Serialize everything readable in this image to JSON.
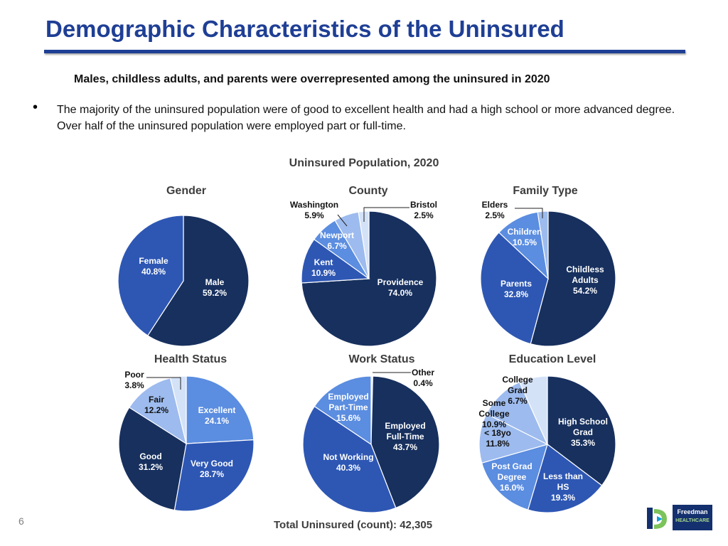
{
  "header": {
    "title": "Demographic Characteristics of the Uninsured",
    "subtitle": "Males, childless adults, and parents were overrepresented among the uninsured in 2020",
    "bullet": "The majority of the uninsured population were of good to excellent health and had a high school or more advanced degree. Over half of the uninsured population were employed part or full-time."
  },
  "section_title": "Uninsured Population, 2020",
  "footer": {
    "page_number": "6",
    "total": "Total Uninsured (count): 42,305",
    "logo_line1": "Freedman",
    "logo_line2": "HEALTHCARE"
  },
  "colors": {
    "title_blue": "#1f3f95",
    "navy": "#17305e",
    "medium_blue": "#2e57b4",
    "light_blue": "#5b8de0",
    "pale_blue": "#9dbbee",
    "palest_blue": "#d4e2f8"
  },
  "chart_data": [
    {
      "type": "pie",
      "title": "Gender",
      "slices": [
        {
          "label": "Male",
          "value": 59.2,
          "value_label": "59.2%",
          "color": "#17305e"
        },
        {
          "label": "Female",
          "value": 40.8,
          "value_label": "40.8%",
          "color": "#2e57b4"
        }
      ]
    },
    {
      "type": "pie",
      "title": "County",
      "slices": [
        {
          "label": "Providence",
          "value": 74.0,
          "value_label": "74.0%",
          "color": "#17305e"
        },
        {
          "label": "Kent",
          "value": 10.9,
          "value_label": "10.9%",
          "color": "#2e57b4"
        },
        {
          "label": "Newport",
          "value": 6.7,
          "value_label": "6.7%",
          "color": "#5b8de0"
        },
        {
          "label": "Washington",
          "value": 5.9,
          "value_label": "5.9%",
          "color": "#9dbbee"
        },
        {
          "label": "Bristol",
          "value": 2.5,
          "value_label": "2.5%",
          "color": "#d4e2f8"
        }
      ]
    },
    {
      "type": "pie",
      "title": "Family Type",
      "slices": [
        {
          "label": "Childless Adults",
          "value": 54.2,
          "value_label": "54.2%",
          "color": "#17305e"
        },
        {
          "label": "Parents",
          "value": 32.8,
          "value_label": "32.8%",
          "color": "#2e57b4"
        },
        {
          "label": "Children",
          "value": 10.5,
          "value_label": "10.5%",
          "color": "#5b8de0"
        },
        {
          "label": "Elders",
          "value": 2.5,
          "value_label": "2.5%",
          "color": "#9dbbee"
        }
      ]
    },
    {
      "type": "pie",
      "title": "Health Status",
      "slices": [
        {
          "label": "Excellent",
          "value": 24.1,
          "value_label": "24.1%",
          "color": "#5b8de0"
        },
        {
          "label": "Very Good",
          "value": 28.7,
          "value_label": "28.7%",
          "color": "#2e57b4"
        },
        {
          "label": "Good",
          "value": 31.2,
          "value_label": "31.2%",
          "color": "#17305e"
        },
        {
          "label": "Fair",
          "value": 12.2,
          "value_label": "12.2%",
          "color": "#9dbbee"
        },
        {
          "label": "Poor",
          "value": 3.8,
          "value_label": "3.8%",
          "color": "#d4e2f8"
        }
      ]
    },
    {
      "type": "pie",
      "title": "Work Status",
      "slices": [
        {
          "label": "Other",
          "value": 0.4,
          "value_label": "0.4%",
          "color": "#d4e2f8"
        },
        {
          "label": "Employed Full-Time",
          "value": 43.7,
          "value_label": "43.7%",
          "color": "#17305e"
        },
        {
          "label": "Not Working",
          "value": 40.3,
          "value_label": "40.3%",
          "color": "#2e57b4"
        },
        {
          "label": "Employed Part-Time",
          "value": 15.6,
          "value_label": "15.6%",
          "color": "#5b8de0"
        }
      ]
    },
    {
      "type": "pie",
      "title": "Education Level",
      "slices": [
        {
          "label": "High School Grad",
          "value": 35.3,
          "value_label": "35.3%",
          "color": "#17305e"
        },
        {
          "label": "Less than HS",
          "value": 19.3,
          "value_label": "19.3%",
          "color": "#2e57b4"
        },
        {
          "label": "Post Grad Degree",
          "value": 16.0,
          "value_label": "16.0%",
          "color": "#5b8de0"
        },
        {
          "label": "< 18yo",
          "value": 11.8,
          "value_label": "11.8%",
          "color": "#9dbbee"
        },
        {
          "label": "Some College",
          "value": 10.9,
          "value_label": "10.9%",
          "color": "#9dbbee"
        },
        {
          "label": "College Grad",
          "value": 6.7,
          "value_label": "6.7%",
          "color": "#d4e2f8"
        }
      ]
    }
  ]
}
